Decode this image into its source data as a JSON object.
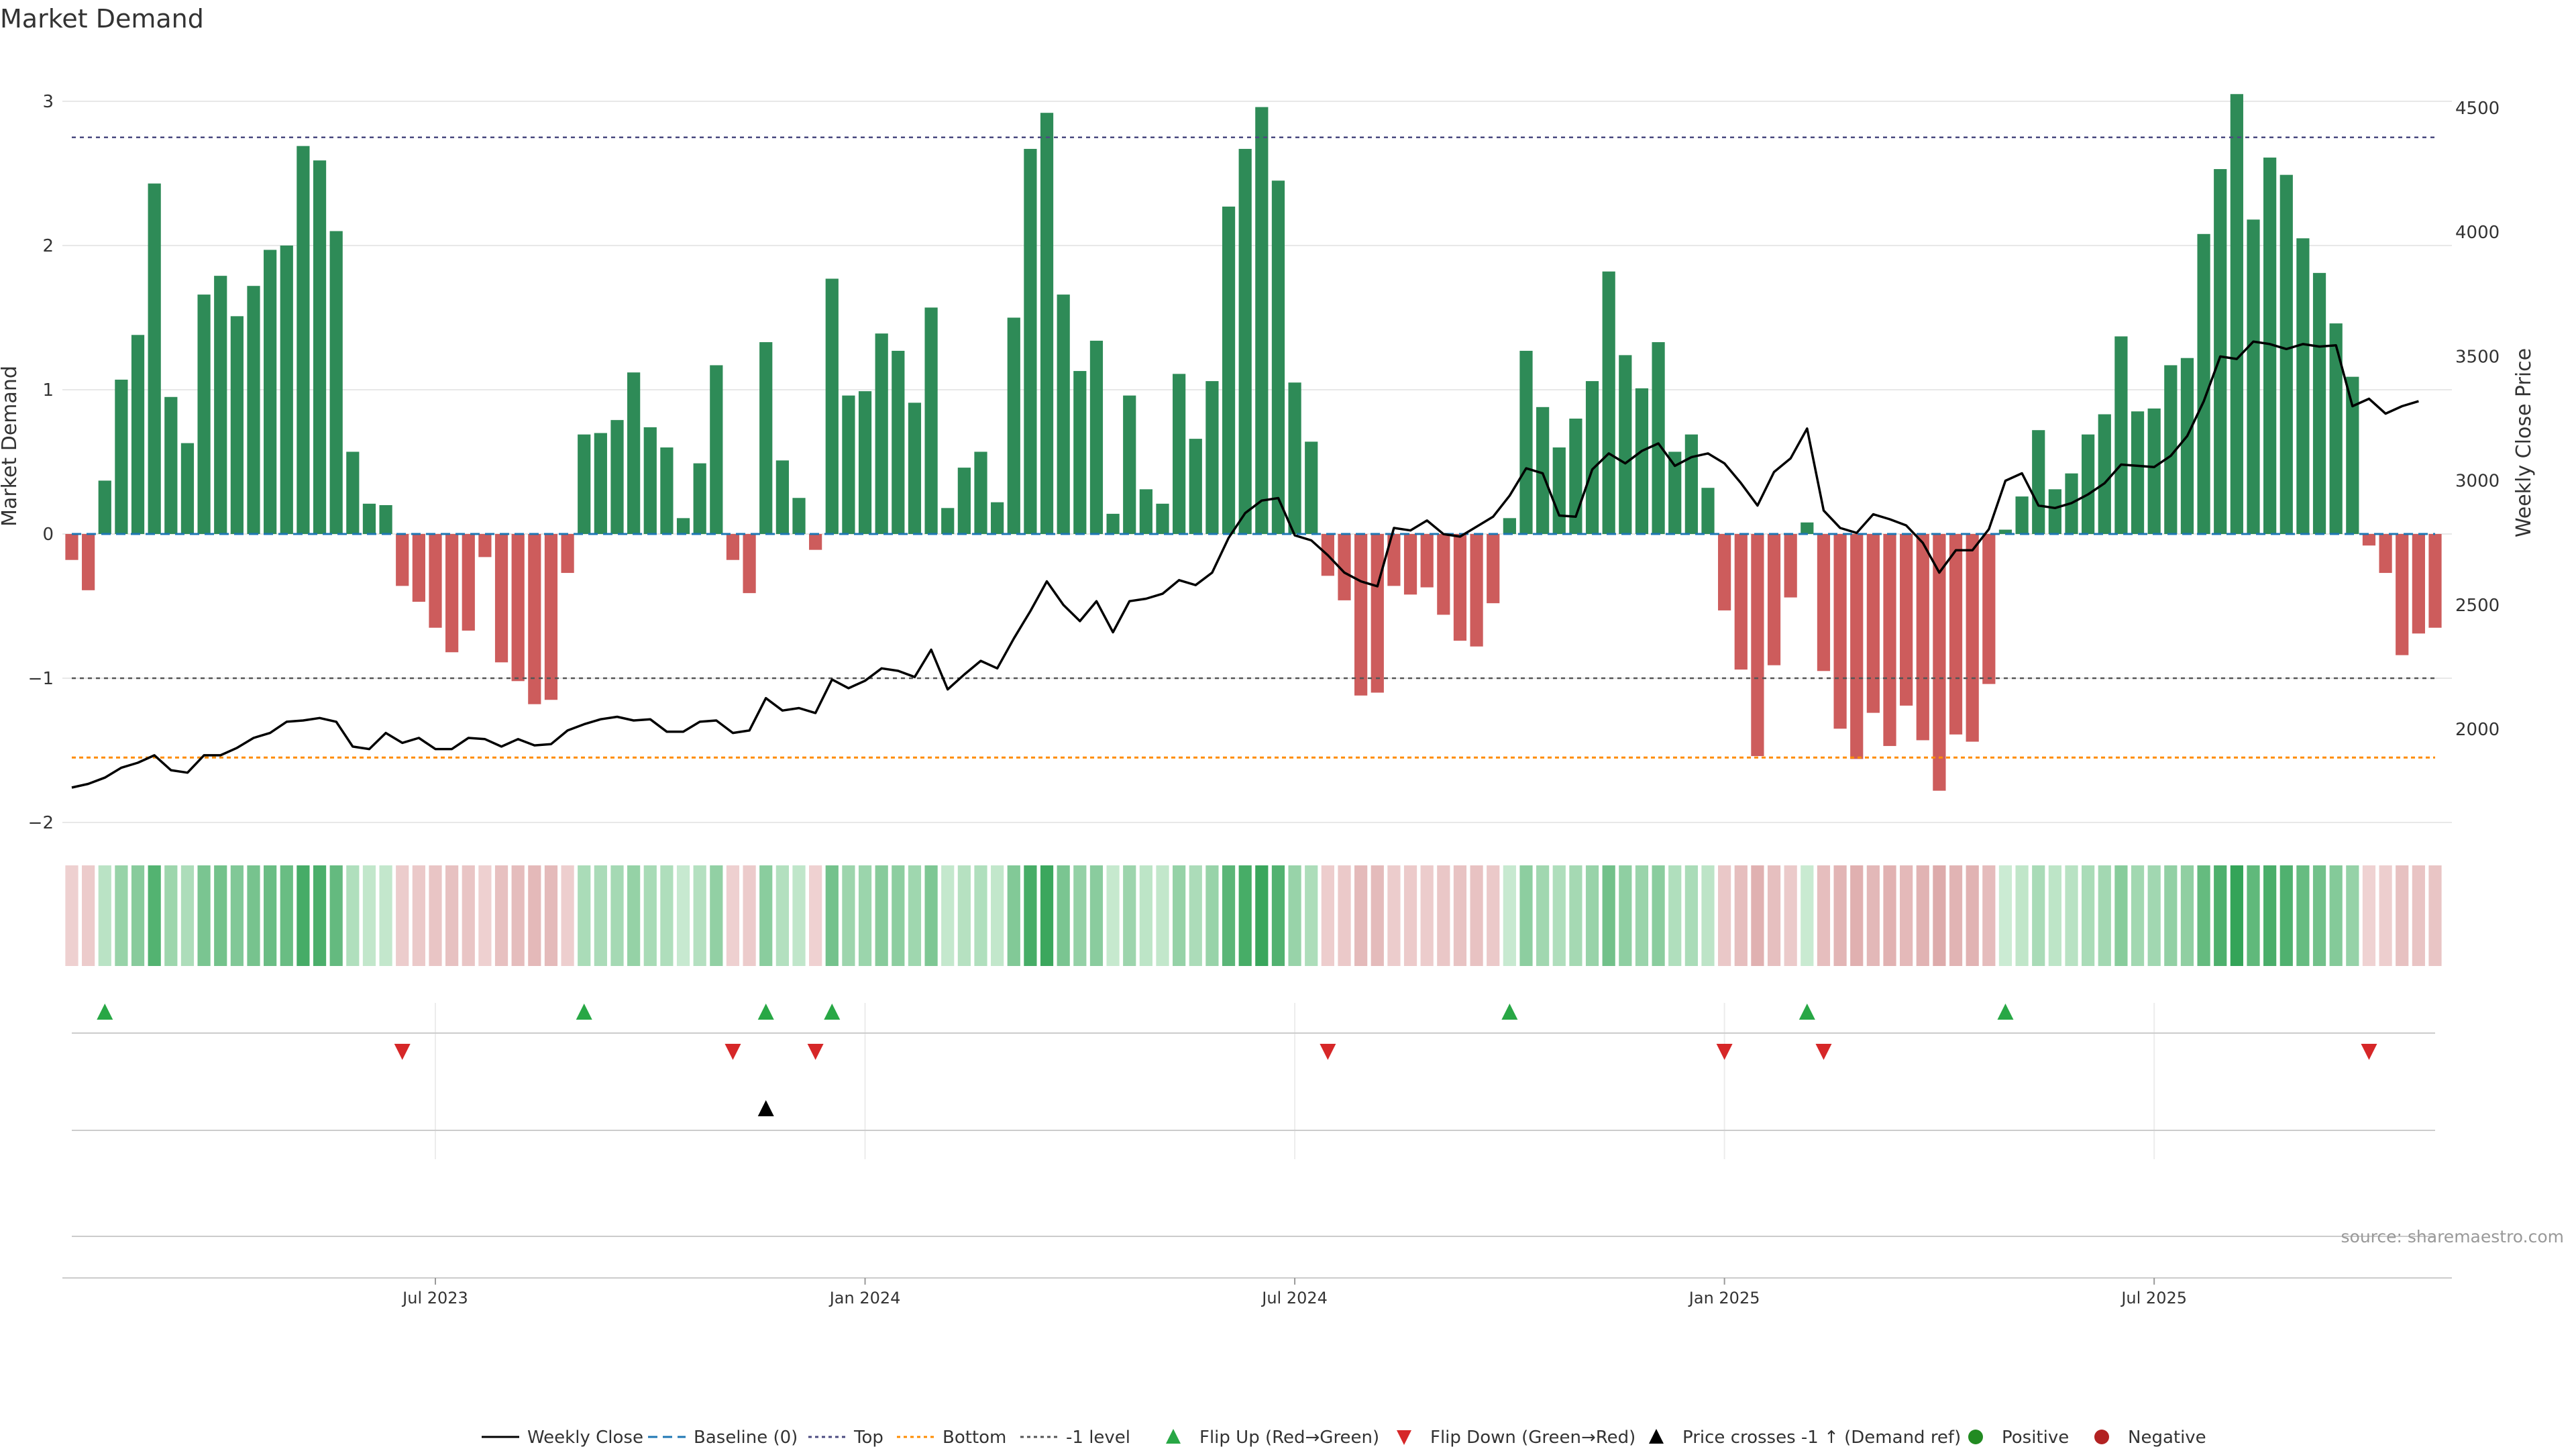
{
  "chart_data": {
    "type": "bar",
    "title": "Market Demand",
    "ylabel": "Market Demand",
    "y2label": "Weekly Close Price",
    "ylim": [
      -2,
      3.3
    ],
    "y2lim": [
      1640,
      4640
    ],
    "yticks": [
      3,
      2,
      1,
      0,
      -1,
      -2
    ],
    "yticklabels": [
      "3",
      "2",
      "1",
      "0",
      "−1",
      "−2"
    ],
    "y2ticks": [
      4500,
      4000,
      3500,
      3000,
      2500,
      2000
    ],
    "y2ticklabels": [
      "4500",
      "4000",
      "3500",
      "3000",
      "2500",
      "2000"
    ],
    "date_ticks": [
      {
        "week": 22,
        "label": "Jul 2023"
      },
      {
        "week": 48,
        "label": "Jan 2024"
      },
      {
        "week": 74,
        "label": "Jul 2024"
      },
      {
        "week": 100,
        "label": "Jan 2025"
      },
      {
        "week": 126,
        "label": "Jul 2025"
      }
    ],
    "reference_lines": {
      "top": 2.75,
      "bottom": -1.55,
      "minus_one": -1,
      "baseline": 0
    },
    "series": [
      {
        "name": "Market Demand",
        "values": [
          -0.18,
          -0.39,
          0.37,
          1.07,
          1.38,
          2.43,
          0.95,
          0.63,
          1.66,
          1.79,
          1.51,
          1.72,
          1.97,
          2.0,
          2.69,
          2.59,
          2.1,
          0.57,
          0.21,
          0.2,
          -0.36,
          -0.47,
          -0.65,
          -0.82,
          -0.67,
          -0.16,
          -0.89,
          -1.02,
          -1.18,
          -1.15,
          -0.27,
          0.69,
          0.7,
          0.79,
          1.12,
          0.74,
          0.6,
          0.11,
          0.49,
          1.17,
          -0.18,
          -0.41,
          1.33,
          0.51,
          0.25,
          -0.11,
          1.77,
          0.96,
          0.99,
          1.39,
          1.27,
          0.91,
          1.57,
          0.18,
          0.46,
          0.57,
          0.22,
          1.5,
          2.67,
          2.92,
          1.66,
          1.13,
          1.34,
          0.14,
          0.96,
          0.31,
          0.21,
          1.11,
          0.66,
          1.06,
          2.27,
          2.67,
          2.96,
          2.45,
          1.05,
          0.64,
          -0.29,
          -0.46,
          -1.12,
          -1.1,
          -0.36,
          -0.42,
          -0.37,
          -0.56,
          -0.74,
          -0.78,
          -0.48,
          0.11,
          1.27,
          0.88,
          0.6,
          0.8,
          1.06,
          1.82,
          1.24,
          1.01,
          1.33,
          0.57,
          0.69,
          0.32,
          -0.53,
          -0.94,
          -1.54,
          -0.91,
          -0.44,
          0.08,
          -0.95,
          -1.35,
          -1.56,
          -1.24,
          -1.47,
          -1.19,
          -1.43,
          -1.78,
          -1.39,
          -1.44,
          -1.04,
          0.03,
          0.26,
          0.72,
          0.31,
          0.42,
          0.69,
          0.83,
          1.37,
          0.85,
          0.87,
          1.17,
          1.22,
          2.08,
          2.53,
          3.05,
          2.18,
          2.61,
          2.49,
          2.05,
          1.81,
          1.46,
          1.09,
          -0.08,
          -0.27,
          -0.84,
          -0.69,
          -0.65
        ]
      },
      {
        "name": "Weekly Close",
        "values": [
          1765,
          1780,
          1805,
          1845,
          1865,
          1895,
          1835,
          1825,
          1895,
          1895,
          1925,
          1965,
          1985,
          2030,
          2035,
          2045,
          2030,
          1930,
          1920,
          1985,
          1945,
          1965,
          1920,
          1920,
          1965,
          1960,
          1930,
          1960,
          1935,
          1940,
          1995,
          2020,
          2040,
          2050,
          2035,
          2040,
          1990,
          1990,
          2030,
          2035,
          1985,
          1995,
          2125,
          2075,
          2085,
          2065,
          2200,
          2165,
          2195,
          2245,
          2235,
          2210,
          2320,
          2160,
          2220,
          2275,
          2245,
          2365,
          2475,
          2595,
          2500,
          2435,
          2515,
          2390,
          2515,
          2525,
          2545,
          2600,
          2580,
          2630,
          2770,
          2870,
          2920,
          2930,
          2780,
          2760,
          2700,
          2630,
          2595,
          2575,
          2810,
          2800,
          2840,
          2785,
          2775,
          2815,
          2855,
          2940,
          3050,
          3030,
          2860,
          2855,
          3045,
          3110,
          3070,
          3120,
          3150,
          3060,
          3095,
          3110,
          3070,
          2990,
          2900,
          3035,
          3090,
          3210,
          2880,
          2810,
          2790,
          2865,
          2845,
          2820,
          2750,
          2630,
          2720,
          2720,
          2805,
          3000,
          3030,
          2900,
          2890,
          2910,
          2945,
          2990,
          3065,
          3060,
          3055,
          3100,
          3180,
          3320,
          3500,
          3490,
          3560,
          3550,
          3530,
          3550,
          3540,
          3545,
          3300,
          3330,
          3270,
          3300,
          3320
        ]
      }
    ],
    "flip_up_weeks": [
      2,
      31,
      42,
      46,
      87,
      105,
      117
    ],
    "flip_down_weeks": [
      20,
      40,
      45,
      76,
      100,
      106,
      139
    ],
    "price_cross_weeks": [
      42
    ],
    "legend": [
      {
        "label": "Weekly Close",
        "marker": "line-solid",
        "color": "#000000"
      },
      {
        "label": "Baseline (0)",
        "marker": "line-dash",
        "color": "#1f77b4"
      },
      {
        "label": "Top",
        "marker": "line-dot",
        "color": "#4b4b80"
      },
      {
        "label": "Bottom",
        "marker": "line-dot",
        "color": "#ff8c00"
      },
      {
        "label": "-1 level",
        "marker": "line-dot",
        "color": "#555555"
      },
      {
        "label": "Flip Up (Red→Green)",
        "marker": "triangle-up",
        "color": "#28a745"
      },
      {
        "label": "Flip Down (Green→Red)",
        "marker": "triangle-down",
        "color": "#d62728"
      },
      {
        "label": "Price crosses -1 ↑ (Demand ref)",
        "marker": "triangle-up",
        "color": "#000000"
      },
      {
        "label": "Positive",
        "marker": "circle",
        "color": "#228b22"
      },
      {
        "label": "Negative",
        "marker": "circle",
        "color": "#b22222"
      }
    ],
    "legend_position": "bottom-center",
    "source": "source: sharemaestro.com"
  },
  "colors": {
    "positive_bar": "#2e8b57",
    "negative_bar": "#cd5c5c",
    "price_line": "#000000",
    "baseline": "#1f77b4",
    "top_line": "#4b4b80",
    "bottom_line": "#ff8c00",
    "minus_one_line": "#555555",
    "flip_up": "#28a745",
    "flip_down": "#d62728",
    "grid": "#e8e8e8"
  }
}
